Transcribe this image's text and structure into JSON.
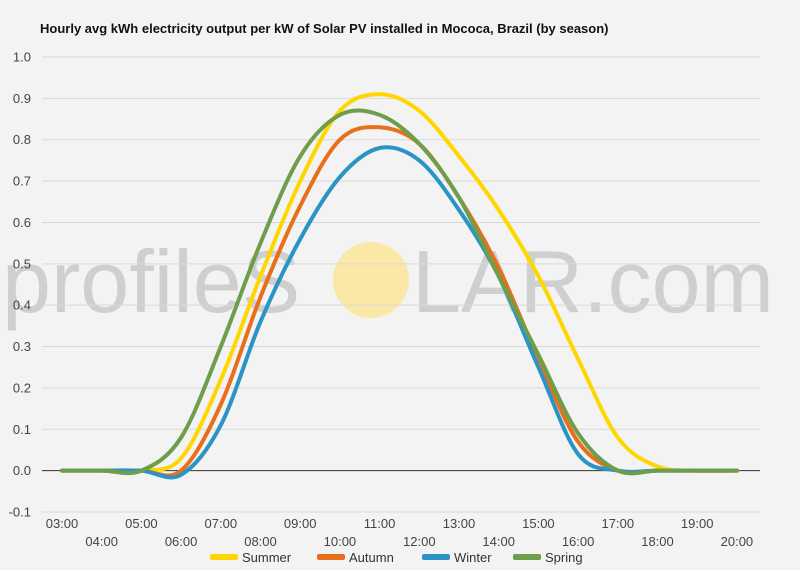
{
  "chart_data": {
    "type": "line",
    "title": "Hourly avg kWh electricity output per kW of Solar PV installed in Mococa, Brazil (by season)",
    "x": [
      "03:00",
      "04:00",
      "05:00",
      "06:00",
      "07:00",
      "08:00",
      "09:00",
      "10:00",
      "11:00",
      "12:00",
      "13:00",
      "14:00",
      "15:00",
      "16:00",
      "17:00",
      "18:00",
      "19:00",
      "20:00"
    ],
    "ylim": [
      -0.1,
      1.0
    ],
    "yticks": [
      "1.0",
      "0.9",
      "0.8",
      "0.7",
      "0.6",
      "0.5",
      "0.4",
      "0.3",
      "0.2",
      "0.1",
      "0.0",
      "-0.1"
    ],
    "ytick_values": [
      1.0,
      0.9,
      0.8,
      0.7,
      0.6,
      0.5,
      0.4,
      0.3,
      0.2,
      0.1,
      0.0,
      -0.1
    ],
    "grid": true,
    "legend_position": "bottom",
    "series": [
      {
        "name": "Summer",
        "color": "#FFD700",
        "values": [
          0.0,
          0.0,
          0.0,
          0.03,
          0.22,
          0.47,
          0.7,
          0.87,
          0.91,
          0.87,
          0.76,
          0.63,
          0.47,
          0.27,
          0.08,
          0.01,
          0.0,
          0.0
        ]
      },
      {
        "name": "Autumn",
        "color": "#E8701A",
        "values": [
          0.0,
          0.0,
          0.0,
          0.0,
          0.16,
          0.42,
          0.64,
          0.8,
          0.83,
          0.79,
          0.66,
          0.49,
          0.27,
          0.07,
          0.0,
          0.0,
          0.0,
          0.0
        ]
      },
      {
        "name": "Winter",
        "color": "#2B94C4",
        "values": [
          0.0,
          0.0,
          0.0,
          -0.01,
          0.11,
          0.36,
          0.56,
          0.71,
          0.78,
          0.75,
          0.63,
          0.47,
          0.25,
          0.04,
          0.0,
          0.0,
          0.0,
          0.0
        ]
      },
      {
        "name": "Spring",
        "color": "#6E9E4B",
        "values": [
          0.0,
          0.0,
          0.0,
          0.08,
          0.3,
          0.55,
          0.76,
          0.86,
          0.86,
          0.79,
          0.66,
          0.47,
          0.28,
          0.09,
          0.0,
          0.0,
          0.0,
          0.0
        ]
      }
    ]
  },
  "watermark": {
    "left": "profileS",
    "right": "LAR.com",
    "sun_color": "#fbe7a6"
  }
}
